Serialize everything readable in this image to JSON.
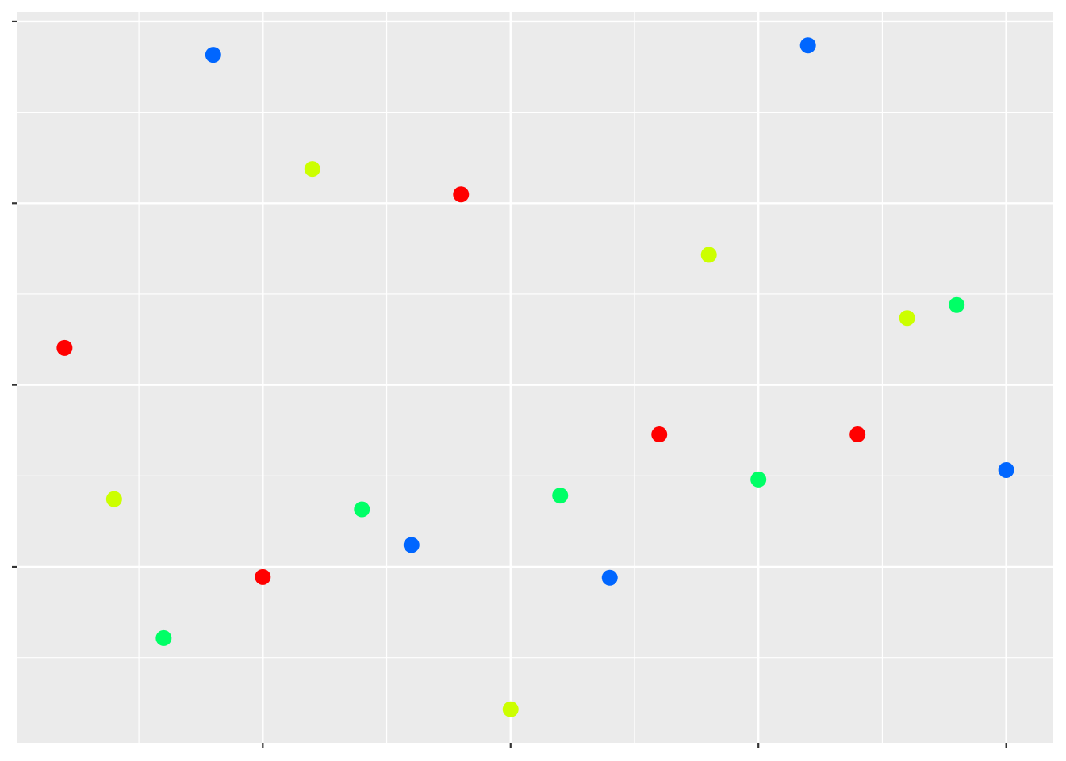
{
  "chart_data": {
    "type": "scatter",
    "series": [
      {
        "color": "#ff0000",
        "x": [
          1,
          5,
          9,
          13,
          17
        ],
        "values": [
          0.551,
          0.236,
          0.762,
          0.432,
          0.432
        ]
      },
      {
        "color": "#ccff00",
        "x": [
          2,
          6,
          10,
          14,
          18
        ],
        "values": [
          0.343,
          0.797,
          0.054,
          0.679,
          0.592
        ]
      },
      {
        "color": "#00ff66",
        "x": [
          3,
          7,
          11,
          15,
          19
        ],
        "values": [
          0.152,
          0.329,
          0.348,
          0.37,
          0.61
        ]
      },
      {
        "color": "#0066ff",
        "x": [
          4,
          8,
          12,
          16,
          20
        ],
        "values": [
          0.954,
          0.28,
          0.235,
          0.967,
          0.383
        ]
      }
    ],
    "xlim": [
      0.05,
      20.95
    ],
    "xticks": [
      5,
      10,
      15,
      20
    ],
    "ylim": [
      0.008,
      1.013
    ],
    "yticks": [
      0.25,
      0.5,
      0.75,
      1.0
    ],
    "grid": true
  }
}
